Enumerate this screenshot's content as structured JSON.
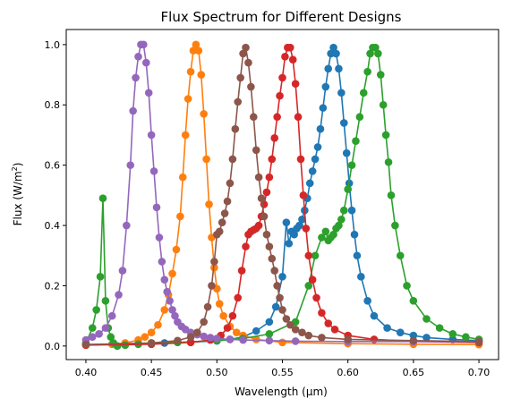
{
  "chart_data": {
    "type": "line",
    "title": "Flux Spectrum for Different Designs",
    "xlabel": "Wavelength (µm)",
    "ylabel_text": "Flux (W/m",
    "ylabel_sup": "2",
    "ylabel_close": ")",
    "xlim": [
      0.385,
      0.715
    ],
    "ylim": [
      -0.045,
      1.05
    ],
    "xticks": [
      0.4,
      0.45,
      0.5,
      0.55,
      0.6,
      0.65,
      0.7
    ],
    "xtick_labels": [
      "0.40",
      "0.45",
      "0.50",
      "0.55",
      "0.60",
      "0.65",
      "0.70"
    ],
    "yticks": [
      0.0,
      0.2,
      0.4,
      0.6,
      0.8,
      1.0
    ],
    "ytick_labels": [
      "0.0",
      "0.2",
      "0.4",
      "0.6",
      "0.8",
      "1.0"
    ],
    "grid": false,
    "markers": "circle",
    "series": [
      {
        "color": "#1f77b4",
        "x": [
          0.4,
          0.42,
          0.44,
          0.46,
          0.48,
          0.5,
          0.51,
          0.52,
          0.53,
          0.54,
          0.545,
          0.55,
          0.553,
          0.555,
          0.557,
          0.559,
          0.561,
          0.563,
          0.565,
          0.567,
          0.569,
          0.571,
          0.573,
          0.575,
          0.577,
          0.579,
          0.581,
          0.583,
          0.585,
          0.587,
          0.589,
          0.591,
          0.593,
          0.595,
          0.597,
          0.599,
          0.601,
          0.603,
          0.605,
          0.607,
          0.61,
          0.615,
          0.62,
          0.63,
          0.64,
          0.65,
          0.66,
          0.68,
          0.7
        ],
        "y": [
          0.005,
          0.006,
          0.008,
          0.01,
          0.013,
          0.017,
          0.022,
          0.03,
          0.05,
          0.08,
          0.13,
          0.23,
          0.41,
          0.34,
          0.38,
          0.37,
          0.39,
          0.4,
          0.42,
          0.45,
          0.49,
          0.54,
          0.58,
          0.62,
          0.66,
          0.72,
          0.79,
          0.86,
          0.92,
          0.97,
          0.99,
          0.97,
          0.92,
          0.84,
          0.74,
          0.64,
          0.54,
          0.45,
          0.37,
          0.3,
          0.23,
          0.15,
          0.1,
          0.06,
          0.045,
          0.035,
          0.028,
          0.022,
          0.018
        ]
      },
      {
        "color": "#ff7f0e",
        "x": [
          0.4,
          0.42,
          0.43,
          0.44,
          0.445,
          0.45,
          0.455,
          0.46,
          0.463,
          0.466,
          0.469,
          0.472,
          0.474,
          0.476,
          0.478,
          0.48,
          0.482,
          0.484,
          0.486,
          0.488,
          0.49,
          0.492,
          0.494,
          0.496,
          0.498,
          0.5,
          0.502,
          0.505,
          0.51,
          0.515,
          0.52,
          0.53,
          0.55,
          0.6,
          0.65,
          0.7
        ],
        "y": [
          0.003,
          0.006,
          0.01,
          0.02,
          0.03,
          0.045,
          0.07,
          0.12,
          0.17,
          0.24,
          0.32,
          0.43,
          0.56,
          0.7,
          0.82,
          0.91,
          0.98,
          1.0,
          0.98,
          0.9,
          0.77,
          0.62,
          0.47,
          0.36,
          0.26,
          0.19,
          0.14,
          0.1,
          0.065,
          0.045,
          0.035,
          0.022,
          0.012,
          0.008,
          0.006,
          0.005
        ]
      },
      {
        "color": "#2ca02c",
        "x": [
          0.4,
          0.405,
          0.408,
          0.411,
          0.413,
          0.415,
          0.417,
          0.419,
          0.421,
          0.424,
          0.43,
          0.44,
          0.45,
          0.47,
          0.5,
          0.52,
          0.54,
          0.56,
          0.57,
          0.575,
          0.58,
          0.583,
          0.585,
          0.587,
          0.589,
          0.591,
          0.593,
          0.595,
          0.597,
          0.6,
          0.603,
          0.606,
          0.609,
          0.612,
          0.615,
          0.617,
          0.619,
          0.621,
          0.623,
          0.625,
          0.627,
          0.629,
          0.631,
          0.633,
          0.636,
          0.64,
          0.645,
          0.65,
          0.66,
          0.67,
          0.68,
          0.69,
          0.7
        ],
        "y": [
          0.01,
          0.06,
          0.12,
          0.23,
          0.49,
          0.15,
          0.06,
          0.03,
          0.01,
          0.0,
          0.003,
          0.006,
          0.01,
          0.012,
          0.018,
          0.025,
          0.04,
          0.08,
          0.2,
          0.3,
          0.36,
          0.38,
          0.35,
          0.36,
          0.37,
          0.39,
          0.4,
          0.42,
          0.45,
          0.52,
          0.6,
          0.68,
          0.76,
          0.84,
          0.91,
          0.97,
          0.99,
          0.99,
          0.97,
          0.9,
          0.8,
          0.7,
          0.61,
          0.5,
          0.4,
          0.3,
          0.2,
          0.15,
          0.09,
          0.06,
          0.04,
          0.03,
          0.022
        ]
      },
      {
        "color": "#d62728",
        "x": [
          0.4,
          0.45,
          0.48,
          0.495,
          0.503,
          0.508,
          0.512,
          0.516,
          0.519,
          0.522,
          0.524,
          0.526,
          0.528,
          0.53,
          0.532,
          0.534,
          0.536,
          0.538,
          0.54,
          0.542,
          0.544,
          0.546,
          0.548,
          0.55,
          0.552,
          0.554,
          0.556,
          0.558,
          0.56,
          0.562,
          0.564,
          0.566,
          0.568,
          0.57,
          0.573,
          0.576,
          0.58,
          0.585,
          0.59,
          0.6,
          0.62,
          0.65,
          0.7
        ],
        "y": [
          0.003,
          0.006,
          0.012,
          0.02,
          0.035,
          0.06,
          0.1,
          0.16,
          0.25,
          0.33,
          0.37,
          0.38,
          0.385,
          0.39,
          0.4,
          0.43,
          0.47,
          0.51,
          0.56,
          0.62,
          0.69,
          0.76,
          0.83,
          0.89,
          0.96,
          0.99,
          0.99,
          0.95,
          0.87,
          0.76,
          0.62,
          0.5,
          0.39,
          0.3,
          0.22,
          0.16,
          0.11,
          0.075,
          0.055,
          0.035,
          0.022,
          0.015,
          0.012
        ]
      },
      {
        "color": "#9467bd",
        "x": [
          0.4,
          0.405,
          0.41,
          0.415,
          0.42,
          0.425,
          0.428,
          0.431,
          0.434,
          0.436,
          0.438,
          0.44,
          0.442,
          0.444,
          0.446,
          0.448,
          0.45,
          0.452,
          0.454,
          0.456,
          0.458,
          0.46,
          0.462,
          0.464,
          0.466,
          0.468,
          0.47,
          0.473,
          0.476,
          0.48,
          0.485,
          0.49,
          0.495,
          0.5,
          0.51,
          0.52,
          0.54,
          0.56,
          0.6,
          0.65,
          0.7
        ],
        "y": [
          0.02,
          0.03,
          0.04,
          0.06,
          0.1,
          0.17,
          0.25,
          0.4,
          0.6,
          0.78,
          0.89,
          0.96,
          1.0,
          1.0,
          0.94,
          0.84,
          0.7,
          0.58,
          0.46,
          0.36,
          0.28,
          0.22,
          0.18,
          0.15,
          0.12,
          0.1,
          0.08,
          0.065,
          0.055,
          0.045,
          0.038,
          0.032,
          0.028,
          0.025,
          0.022,
          0.02,
          0.018,
          0.016,
          0.015,
          0.015,
          0.015
        ]
      },
      {
        "color": "#8c564b",
        "x": [
          0.4,
          0.45,
          0.47,
          0.48,
          0.485,
          0.49,
          0.493,
          0.496,
          0.498,
          0.5,
          0.502,
          0.504,
          0.506,
          0.508,
          0.51,
          0.512,
          0.514,
          0.516,
          0.518,
          0.52,
          0.522,
          0.524,
          0.526,
          0.528,
          0.53,
          0.532,
          0.534,
          0.536,
          0.538,
          0.54,
          0.542,
          0.544,
          0.546,
          0.548,
          0.55,
          0.553,
          0.556,
          0.56,
          0.565,
          0.57,
          0.58,
          0.6,
          0.65,
          0.7
        ],
        "y": [
          0.005,
          0.01,
          0.018,
          0.03,
          0.045,
          0.08,
          0.13,
          0.2,
          0.28,
          0.37,
          0.38,
          0.41,
          0.44,
          0.48,
          0.54,
          0.62,
          0.72,
          0.81,
          0.89,
          0.97,
          0.99,
          0.94,
          0.86,
          0.76,
          0.65,
          0.56,
          0.49,
          0.43,
          0.37,
          0.33,
          0.29,
          0.25,
          0.2,
          0.16,
          0.12,
          0.09,
          0.07,
          0.055,
          0.045,
          0.035,
          0.028,
          0.022,
          0.018,
          0.015
        ]
      }
    ]
  }
}
